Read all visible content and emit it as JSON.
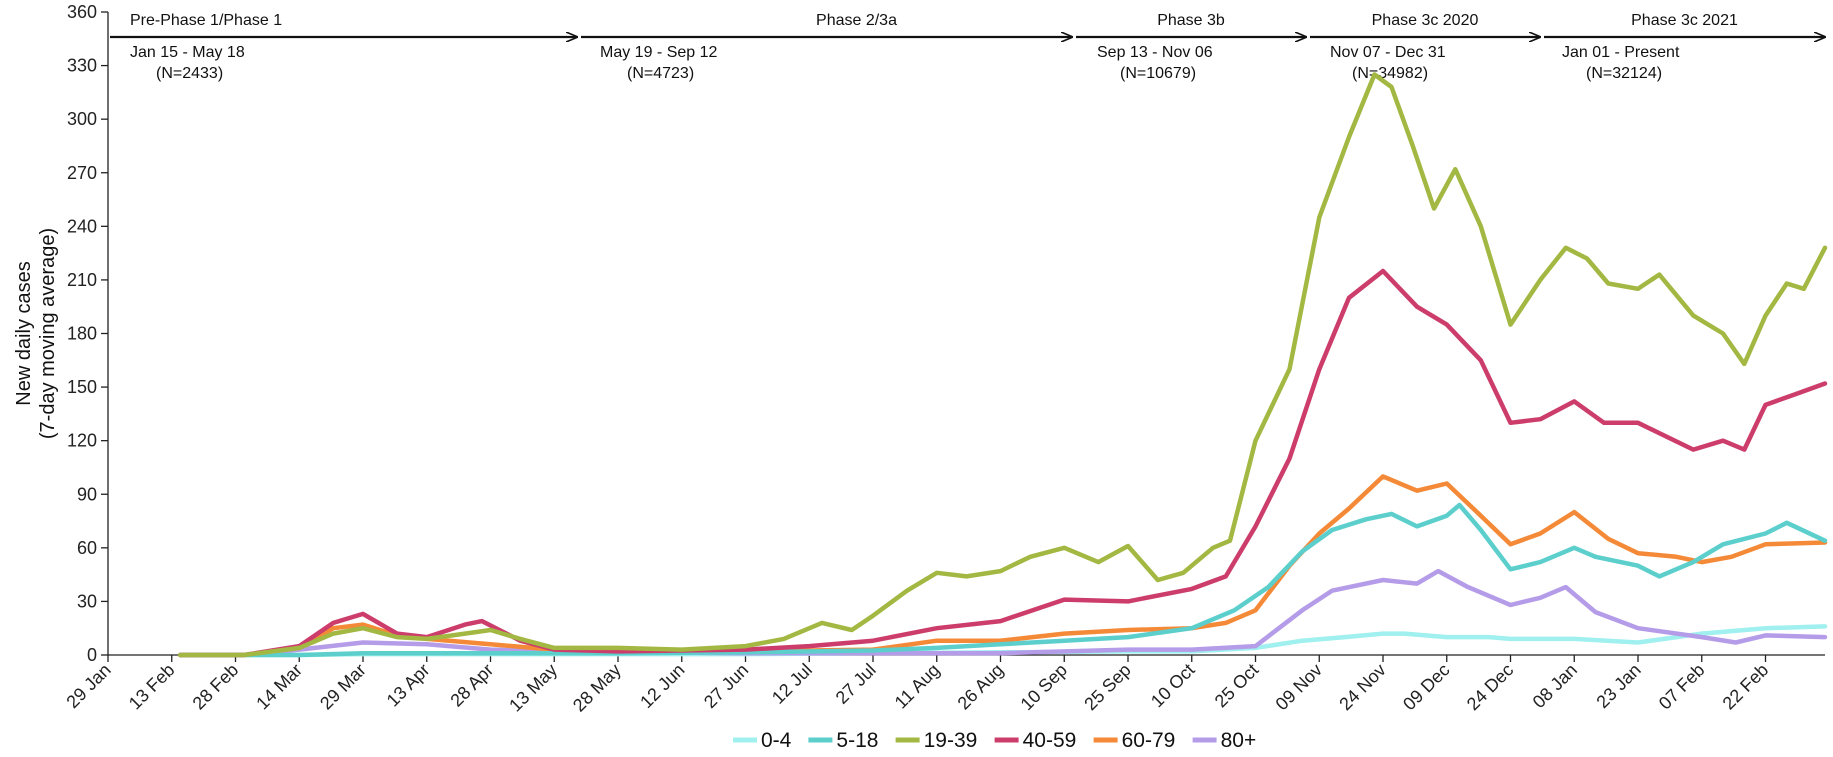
{
  "chart_data": {
    "type": "line",
    "ylabel_lines": [
      "New daily cases",
      "(7-day moving average)"
    ],
    "ylim": [
      0,
      360
    ],
    "yticks": [
      0,
      30,
      60,
      90,
      120,
      150,
      180,
      210,
      240,
      270,
      300,
      330,
      360
    ],
    "xlim": [
      "2020-01-29",
      "2021-03-08"
    ],
    "xticks": [
      "2020-01-29",
      "2020-02-13",
      "2020-02-28",
      "2020-03-14",
      "2020-03-29",
      "2020-04-13",
      "2020-04-28",
      "2020-05-13",
      "2020-05-28",
      "2020-06-12",
      "2020-06-27",
      "2020-07-12",
      "2020-07-27",
      "2020-08-11",
      "2020-08-26",
      "2020-09-10",
      "2020-09-25",
      "2020-10-10",
      "2020-10-25",
      "2020-11-09",
      "2020-11-24",
      "2020-12-09",
      "2020-12-24",
      "2021-01-08",
      "2021-01-23",
      "2021-02-07",
      "2021-02-22"
    ],
    "xtick_labels": [
      "29 Jan",
      "13 Feb",
      "28 Feb",
      "14 Mar",
      "29 Mar",
      "13 Apr",
      "28 Apr",
      "13 May",
      "28 May",
      "12 Jun",
      "27 Jun",
      "12 Jul",
      "27 Jul",
      "11 Aug",
      "26 Aug",
      "10 Sep",
      "25 Sep",
      "10 Oct",
      "25 Oct",
      "09 Nov",
      "24 Nov",
      "09 Dec",
      "24 Dec",
      "08 Jan",
      "23 Jan",
      "07 Feb",
      "22 Feb"
    ],
    "phases": [
      {
        "name": "Pre-Phase 1/Phase 1",
        "dates": "Jan 15 - May 18",
        "n": "(N=2433)",
        "start": "2020-01-29",
        "end": "2020-05-18"
      },
      {
        "name": "Phase 2/3a",
        "dates": "May 19 - Sep 12",
        "n": "(N=4723)",
        "start": "2020-05-19",
        "end": "2020-09-12"
      },
      {
        "name": "Phase 3b",
        "dates": "Sep 13 - Nov 06",
        "n": "(N=10679)",
        "start": "2020-09-13",
        "end": "2020-11-06"
      },
      {
        "name": "Phase 3c 2020",
        "dates": "Nov 07 - Dec 31",
        "n": "(N=34982)",
        "start": "2020-11-07",
        "end": "2020-12-31"
      },
      {
        "name": "Phase 3c 2021",
        "dates": "Jan 01 - Present",
        "n": "(N=32124)",
        "start": "2021-01-01",
        "end": "2021-03-08"
      }
    ],
    "series": [
      {
        "name": "0-4",
        "color": "#9ff0ee",
        "points": [
          [
            "2020-02-15",
            0
          ],
          [
            "2020-03-14",
            0
          ],
          [
            "2020-03-29",
            0.5
          ],
          [
            "2020-04-28",
            0.5
          ],
          [
            "2020-05-28",
            0.5
          ],
          [
            "2020-06-27",
            0.5
          ],
          [
            "2020-07-27",
            1
          ],
          [
            "2020-08-26",
            1.5
          ],
          [
            "2020-09-25",
            2
          ],
          [
            "2020-10-10",
            2
          ],
          [
            "2020-10-25",
            4
          ],
          [
            "2020-11-05",
            8
          ],
          [
            "2020-11-15",
            10
          ],
          [
            "2020-11-24",
            12
          ],
          [
            "2020-11-29",
            12
          ],
          [
            "2020-12-09",
            10
          ],
          [
            "2020-12-19",
            10
          ],
          [
            "2020-12-24",
            9
          ],
          [
            "2021-01-08",
            9
          ],
          [
            "2021-01-23",
            7
          ],
          [
            "2021-02-07",
            12
          ],
          [
            "2021-02-22",
            15
          ],
          [
            "2021-03-08",
            16
          ]
        ]
      },
      {
        "name": "5-18",
        "color": "#5ccfcc",
        "points": [
          [
            "2020-02-15",
            0
          ],
          [
            "2020-03-14",
            0
          ],
          [
            "2020-03-29",
            1
          ],
          [
            "2020-04-28",
            1
          ],
          [
            "2020-05-28",
            1
          ],
          [
            "2020-06-27",
            1.5
          ],
          [
            "2020-07-27",
            2.5
          ],
          [
            "2020-08-11",
            4
          ],
          [
            "2020-08-26",
            6
          ],
          [
            "2020-09-10",
            8
          ],
          [
            "2020-09-25",
            10
          ],
          [
            "2020-10-10",
            15
          ],
          [
            "2020-10-20",
            25
          ],
          [
            "2020-10-28",
            38
          ],
          [
            "2020-11-05",
            58
          ],
          [
            "2020-11-12",
            70
          ],
          [
            "2020-11-20",
            76
          ],
          [
            "2020-11-26",
            79
          ],
          [
            "2020-12-02",
            72
          ],
          [
            "2020-12-09",
            78
          ],
          [
            "2020-12-12",
            84
          ],
          [
            "2020-12-17",
            70
          ],
          [
            "2020-12-24",
            48
          ],
          [
            "2020-12-31",
            52
          ],
          [
            "2021-01-08",
            60
          ],
          [
            "2021-01-13",
            55
          ],
          [
            "2021-01-23",
            50
          ],
          [
            "2021-01-28",
            44
          ],
          [
            "2021-02-05",
            52
          ],
          [
            "2021-02-12",
            62
          ],
          [
            "2021-02-22",
            68
          ],
          [
            "2021-02-27",
            74
          ],
          [
            "2021-03-08",
            64
          ]
        ]
      },
      {
        "name": "19-39",
        "color": "#a3b842",
        "points": [
          [
            "2020-02-15",
            0
          ],
          [
            "2020-03-01",
            0
          ],
          [
            "2020-03-14",
            4
          ],
          [
            "2020-03-22",
            12
          ],
          [
            "2020-03-29",
            15
          ],
          [
            "2020-04-06",
            10
          ],
          [
            "2020-04-13",
            9
          ],
          [
            "2020-04-22",
            12
          ],
          [
            "2020-04-28",
            14
          ],
          [
            "2020-05-05",
            9
          ],
          [
            "2020-05-13",
            4
          ],
          [
            "2020-05-28",
            4
          ],
          [
            "2020-06-12",
            3
          ],
          [
            "2020-06-27",
            5
          ],
          [
            "2020-07-06",
            9
          ],
          [
            "2020-07-15",
            18
          ],
          [
            "2020-07-22",
            14
          ],
          [
            "2020-07-27",
            22
          ],
          [
            "2020-08-04",
            36
          ],
          [
            "2020-08-11",
            46
          ],
          [
            "2020-08-18",
            44
          ],
          [
            "2020-08-26",
            47
          ],
          [
            "2020-09-02",
            55
          ],
          [
            "2020-09-10",
            60
          ],
          [
            "2020-09-18",
            52
          ],
          [
            "2020-09-25",
            61
          ],
          [
            "2020-10-02",
            42
          ],
          [
            "2020-10-08",
            46
          ],
          [
            "2020-10-15",
            60
          ],
          [
            "2020-10-19",
            64
          ],
          [
            "2020-10-25",
            120
          ],
          [
            "2020-11-02",
            160
          ],
          [
            "2020-11-09",
            245
          ],
          [
            "2020-11-16",
            290
          ],
          [
            "2020-11-22",
            325
          ],
          [
            "2020-11-26",
            318
          ],
          [
            "2020-12-01",
            285
          ],
          [
            "2020-12-06",
            250
          ],
          [
            "2020-12-11",
            272
          ],
          [
            "2020-12-17",
            240
          ],
          [
            "2020-12-24",
            185
          ],
          [
            "2020-12-31",
            210
          ],
          [
            "2021-01-06",
            228
          ],
          [
            "2021-01-11",
            222
          ],
          [
            "2021-01-16",
            208
          ],
          [
            "2021-01-23",
            205
          ],
          [
            "2021-01-28",
            213
          ],
          [
            "2021-02-05",
            190
          ],
          [
            "2021-02-12",
            180
          ],
          [
            "2021-02-17",
            163
          ],
          [
            "2021-02-22",
            190
          ],
          [
            "2021-02-27",
            208
          ],
          [
            "2021-03-03",
            205
          ],
          [
            "2021-03-08",
            228
          ]
        ]
      },
      {
        "name": "40-59",
        "color": "#cc3d6b",
        "points": [
          [
            "2020-02-15",
            0
          ],
          [
            "2020-03-01",
            0
          ],
          [
            "2020-03-14",
            5
          ],
          [
            "2020-03-22",
            18
          ],
          [
            "2020-03-29",
            23
          ],
          [
            "2020-04-06",
            12
          ],
          [
            "2020-04-13",
            10
          ],
          [
            "2020-04-22",
            17
          ],
          [
            "2020-04-26",
            19
          ],
          [
            "2020-05-05",
            8
          ],
          [
            "2020-05-13",
            3
          ],
          [
            "2020-05-28",
            2
          ],
          [
            "2020-06-27",
            3
          ],
          [
            "2020-07-12",
            5
          ],
          [
            "2020-07-27",
            8
          ],
          [
            "2020-08-11",
            15
          ],
          [
            "2020-08-26",
            19
          ],
          [
            "2020-09-10",
            31
          ],
          [
            "2020-09-25",
            30
          ],
          [
            "2020-10-10",
            37
          ],
          [
            "2020-10-18",
            44
          ],
          [
            "2020-10-25",
            72
          ],
          [
            "2020-11-02",
            110
          ],
          [
            "2020-11-09",
            160
          ],
          [
            "2020-11-16",
            200
          ],
          [
            "2020-11-24",
            215
          ],
          [
            "2020-12-02",
            195
          ],
          [
            "2020-12-09",
            185
          ],
          [
            "2020-12-17",
            165
          ],
          [
            "2020-12-24",
            130
          ],
          [
            "2020-12-31",
            132
          ],
          [
            "2021-01-08",
            142
          ],
          [
            "2021-01-15",
            130
          ],
          [
            "2021-01-23",
            130
          ],
          [
            "2021-02-05",
            115
          ],
          [
            "2021-02-12",
            120
          ],
          [
            "2021-02-17",
            115
          ],
          [
            "2021-02-22",
            140
          ],
          [
            "2021-03-01",
            146
          ],
          [
            "2021-03-08",
            152
          ]
        ]
      },
      {
        "name": "60-79",
        "color": "#f48a38",
        "points": [
          [
            "2020-02-15",
            0
          ],
          [
            "2020-03-01",
            0
          ],
          [
            "2020-03-14",
            4
          ],
          [
            "2020-03-22",
            15
          ],
          [
            "2020-03-29",
            17
          ],
          [
            "2020-04-06",
            11
          ],
          [
            "2020-04-13",
            9
          ],
          [
            "2020-04-28",
            6
          ],
          [
            "2020-05-13",
            3
          ],
          [
            "2020-05-28",
            2
          ],
          [
            "2020-06-27",
            2
          ],
          [
            "2020-07-27",
            3
          ],
          [
            "2020-08-11",
            8
          ],
          [
            "2020-08-26",
            8
          ],
          [
            "2020-09-10",
            12
          ],
          [
            "2020-09-25",
            14
          ],
          [
            "2020-10-10",
            15
          ],
          [
            "2020-10-18",
            18
          ],
          [
            "2020-10-25",
            25
          ],
          [
            "2020-11-02",
            50
          ],
          [
            "2020-11-09",
            68
          ],
          [
            "2020-11-16",
            82
          ],
          [
            "2020-11-24",
            100
          ],
          [
            "2020-12-02",
            92
          ],
          [
            "2020-12-09",
            96
          ],
          [
            "2020-12-17",
            78
          ],
          [
            "2020-12-24",
            62
          ],
          [
            "2020-12-31",
            68
          ],
          [
            "2021-01-08",
            80
          ],
          [
            "2021-01-16",
            65
          ],
          [
            "2021-01-23",
            57
          ],
          [
            "2021-02-01",
            55
          ],
          [
            "2021-02-07",
            52
          ],
          [
            "2021-02-14",
            55
          ],
          [
            "2021-02-22",
            62
          ],
          [
            "2021-03-08",
            63
          ]
        ]
      },
      {
        "name": "80+",
        "color": "#b59ce8",
        "points": [
          [
            "2020-02-15",
            0
          ],
          [
            "2020-03-01",
            0
          ],
          [
            "2020-03-14",
            3
          ],
          [
            "2020-03-29",
            7
          ],
          [
            "2020-04-13",
            6
          ],
          [
            "2020-04-28",
            3
          ],
          [
            "2020-05-13",
            2
          ],
          [
            "2020-06-27",
            1
          ],
          [
            "2020-07-27",
            1
          ],
          [
            "2020-08-26",
            1
          ],
          [
            "2020-09-25",
            3
          ],
          [
            "2020-10-10",
            3
          ],
          [
            "2020-10-25",
            5
          ],
          [
            "2020-11-05",
            25
          ],
          [
            "2020-11-12",
            36
          ],
          [
            "2020-11-24",
            42
          ],
          [
            "2020-12-02",
            40
          ],
          [
            "2020-12-07",
            47
          ],
          [
            "2020-12-14",
            38
          ],
          [
            "2020-12-24",
            28
          ],
          [
            "2020-12-31",
            32
          ],
          [
            "2021-01-06",
            38
          ],
          [
            "2021-01-13",
            24
          ],
          [
            "2021-01-23",
            15
          ],
          [
            "2021-02-07",
            10
          ],
          [
            "2021-02-15",
            7
          ],
          [
            "2021-02-22",
            11
          ],
          [
            "2021-03-08",
            10
          ]
        ]
      }
    ],
    "legend_position": "bottom-center",
    "grid": false
  }
}
